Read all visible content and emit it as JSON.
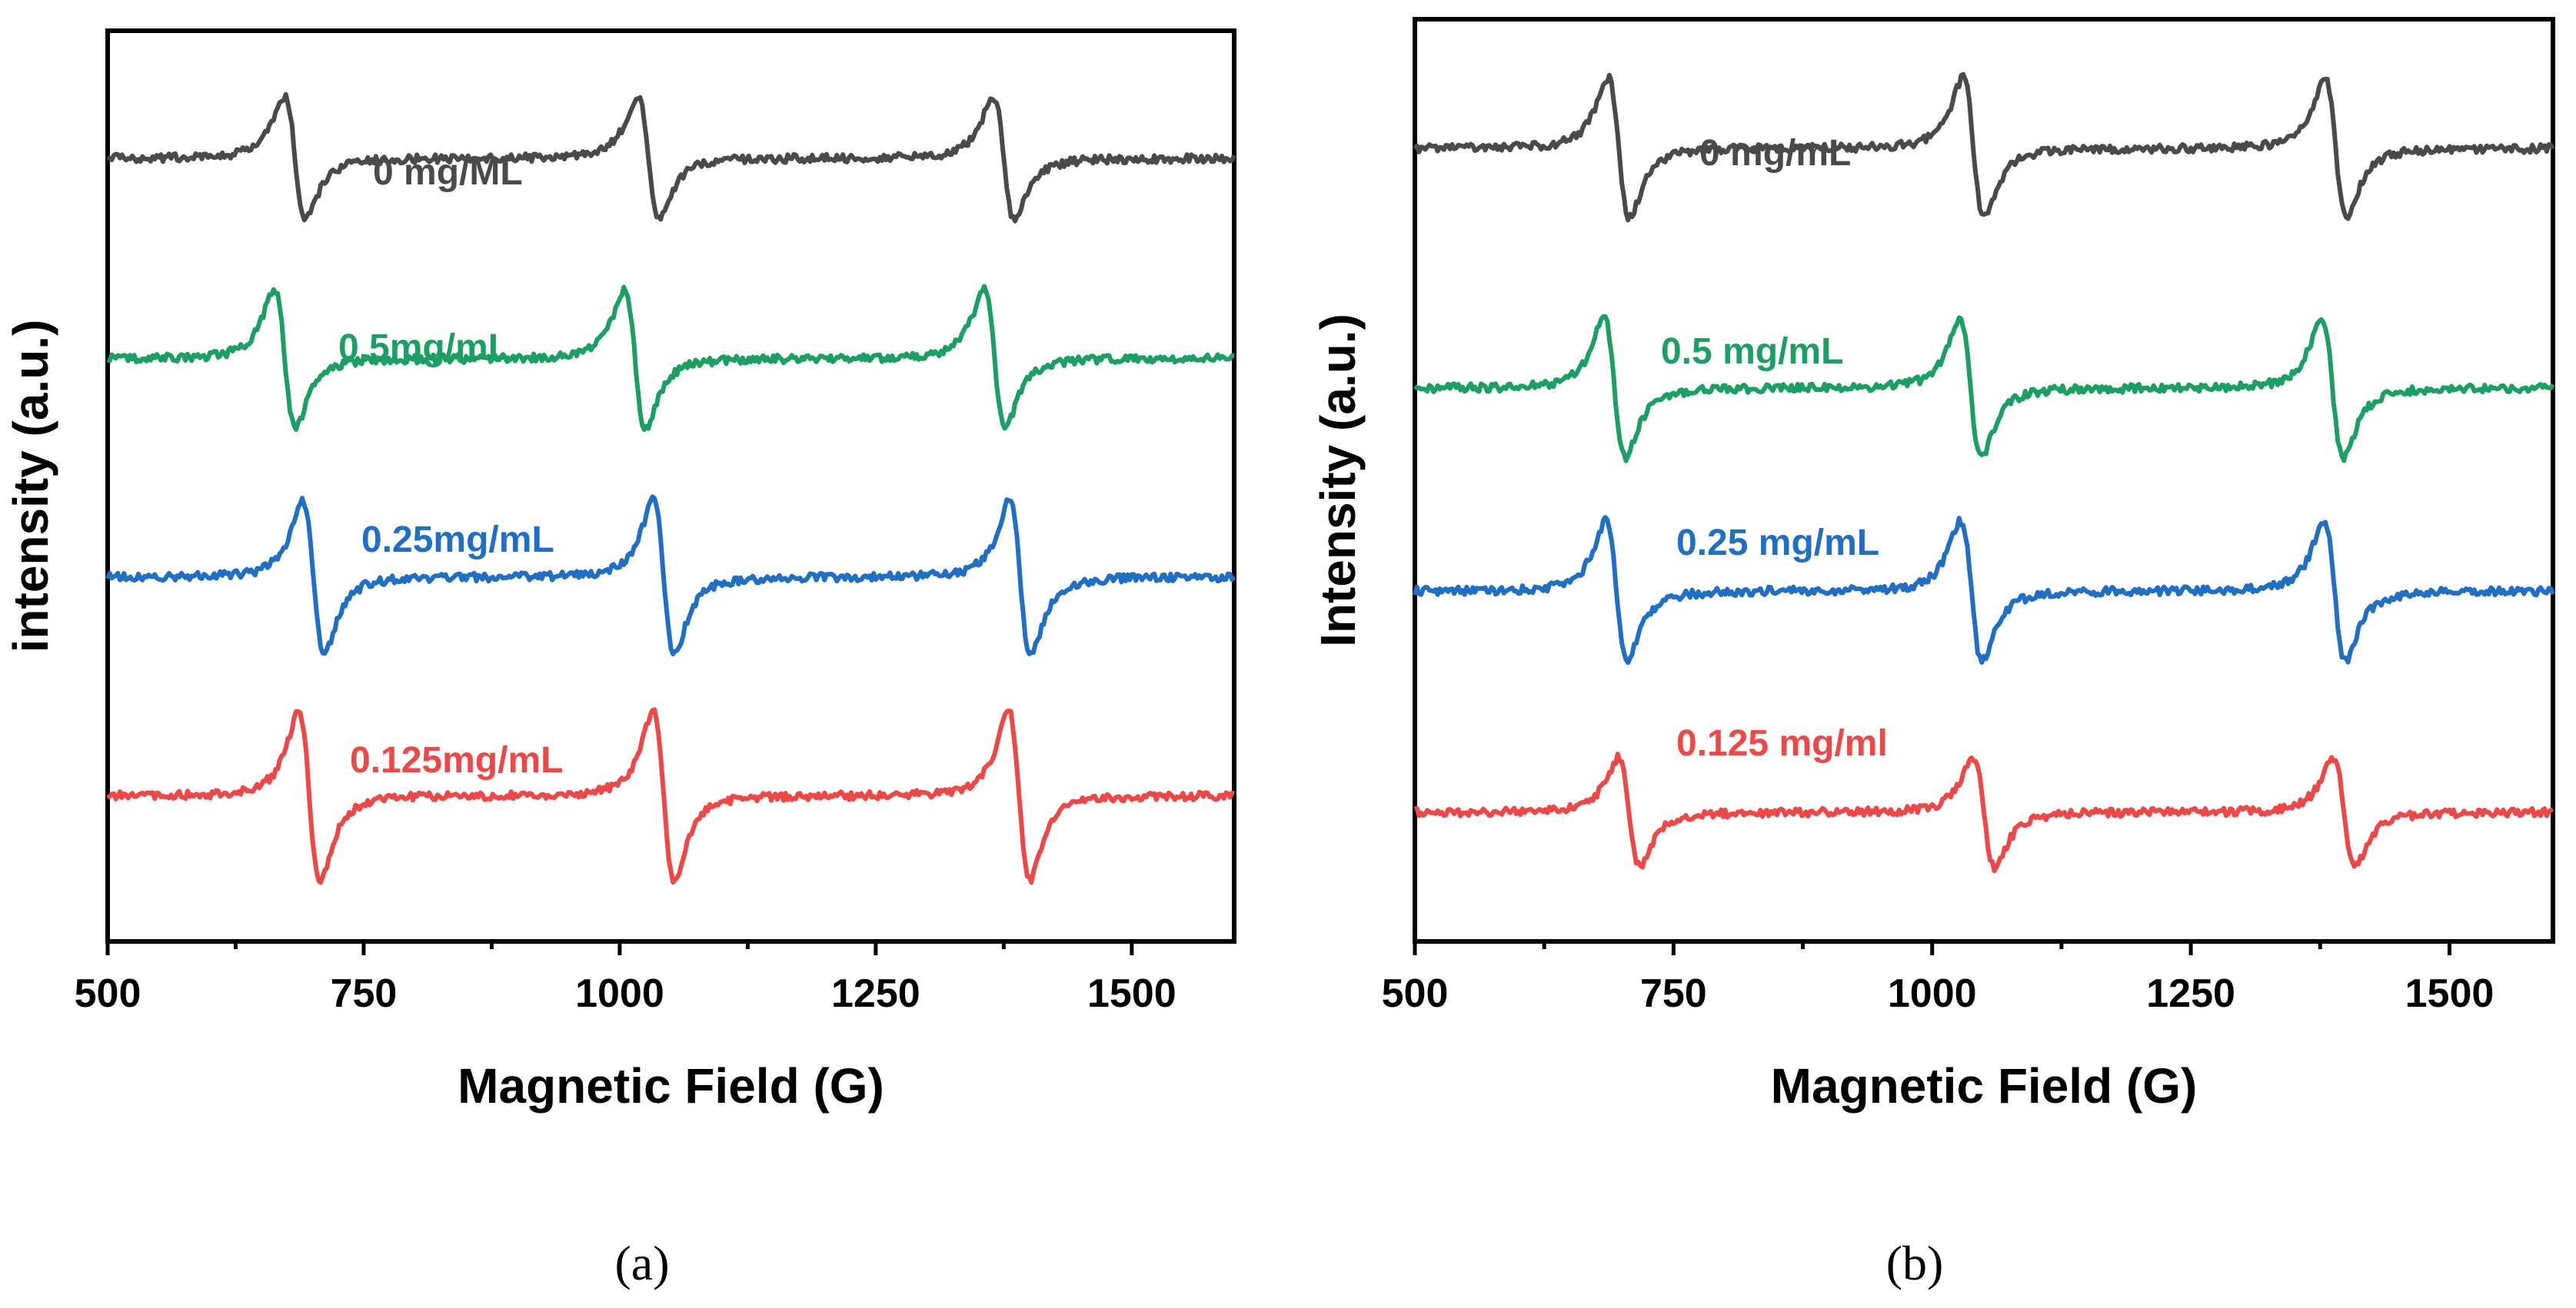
{
  "chart_data": [
    {
      "type": "line",
      "panel": "a",
      "caption": "(a)",
      "xlabel": "Magnetic Field (G)",
      "ylabel": "intensity (a.u.)",
      "xlim": [
        500,
        1600
      ],
      "xticks": [
        "500",
        "750",
        "1000",
        "1250",
        "1500"
      ],
      "ylim": [
        0,
        100
      ],
      "series": [
        {
          "name": "0 mg/ML",
          "color": "#4a4a4a",
          "baseline": 86,
          "amplitude": 8,
          "peaks": [
            683,
            1028,
            1375
          ]
        },
        {
          "name": "0.5mg/mL",
          "color": "#1aa062",
          "baseline": 64,
          "amplitude": 9,
          "peaks": [
            673,
            1015,
            1366
          ]
        },
        {
          "name": "0.25mg/mL",
          "color": "#1f6fc6",
          "baseline": 40,
          "amplitude": 10,
          "peaks": [
            701,
            1043,
            1391
          ]
        },
        {
          "name": "0.125mg/mL",
          "color": "#ef4646",
          "baseline": 16,
          "amplitude": 11,
          "peaks": [
            697,
            1043,
            1390
          ]
        }
      ]
    },
    {
      "type": "line",
      "panel": "b",
      "caption": "(b)",
      "xlabel": "Magnetic Field (G)",
      "ylabel": "Intensity (a.u.)",
      "xlim": [
        500,
        1600
      ],
      "xticks": [
        "500",
        "750",
        "1000",
        "1250",
        "1500"
      ],
      "ylim": [
        0,
        100
      ],
      "series": [
        {
          "name": "0 mg/mL",
          "color": "#4a4a4a",
          "baseline": 86,
          "amplitude": 9,
          "peaks": [
            697,
            1040,
            1390
          ]
        },
        {
          "name": "0.5 mg/mL",
          "color": "#1aa062",
          "baseline": 60,
          "amplitude": 9,
          "peaks": [
            693,
            1037,
            1387
          ]
        },
        {
          "name": "0.25 mg/mL",
          "color": "#1f6fc6",
          "baseline": 38,
          "amplitude": 9,
          "peaks": [
            695,
            1038,
            1389
          ]
        },
        {
          "name": "0.125 mg/ml",
          "color": "#ef4646",
          "baseline": 14,
          "amplitude": 7,
          "peaks": [
            707,
            1050,
            1398
          ]
        }
      ]
    }
  ]
}
